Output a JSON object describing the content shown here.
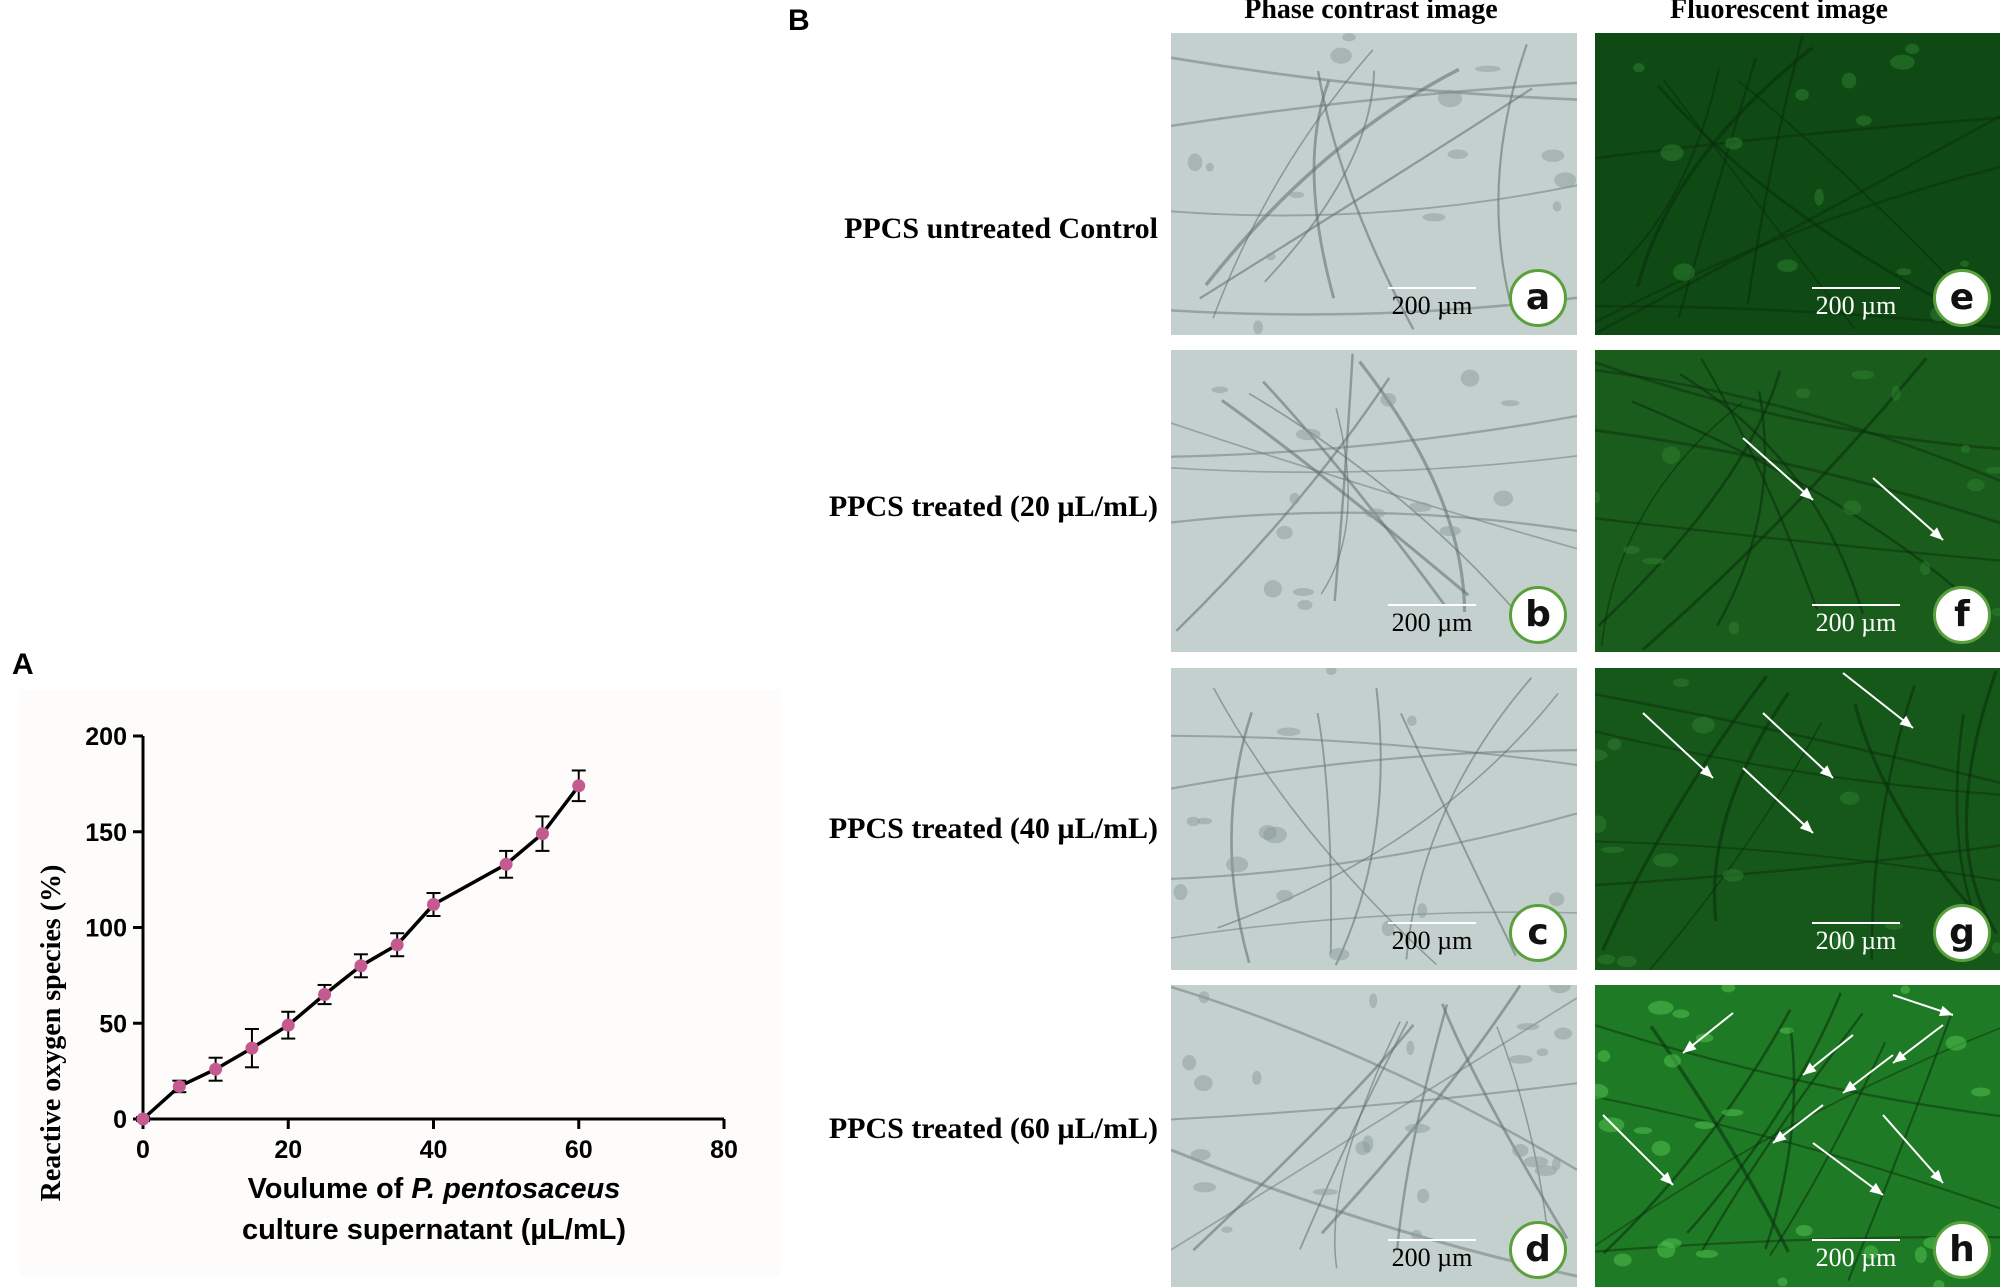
{
  "panel_a_label": "A",
  "panel_b_label": "B",
  "chart_data": {
    "type": "line",
    "title": "",
    "xlabel_line1_prefix": "Voulume of ",
    "xlabel_line1_italic": "P. pentosaceus",
    "xlabel_line2": "culture supernatant (µL/mL)",
    "ylabel": "Reactive oxygen species (%)",
    "xlim": [
      0,
      80
    ],
    "ylim": [
      0,
      200
    ],
    "xticks": [
      "0",
      "20",
      "40",
      "60",
      "80"
    ],
    "yticks": [
      "0",
      "50",
      "100",
      "150",
      "200"
    ],
    "grid": false,
    "marker_color": "#c45a8f",
    "line_color": "#000000",
    "series": [
      {
        "x": [
          0,
          5,
          10,
          15,
          20,
          25,
          30,
          35,
          40,
          50,
          55,
          60
        ],
        "y": [
          0,
          17,
          26,
          37,
          49,
          65,
          80,
          91,
          112,
          133,
          149,
          174
        ],
        "error": [
          1,
          3,
          6,
          10,
          7,
          5,
          6,
          6,
          6,
          7,
          9,
          8
        ]
      }
    ]
  },
  "panel_b": {
    "column_titles": [
      "Phase contrast image",
      "Fluorescent image"
    ],
    "row_labels": [
      "PPCS untreated Control",
      "PPCS treated (20 µL/mL)",
      "PPCS treated (40 µL/mL)",
      "PPCS treated (60 µL/mL)"
    ],
    "scale_bar_label": "200 µm",
    "phase_letters": [
      "a",
      "b",
      "c",
      "d"
    ],
    "fluor_letters": [
      "e",
      "f",
      "g",
      "h"
    ],
    "phase_bg": "#c4d0cd",
    "fluor_bg": [
      "#0f4a14",
      "#1a5c1c",
      "#16571a",
      "#1f7a25"
    ],
    "fluor_arrow_counts": [
      0,
      2,
      4,
      9
    ]
  }
}
